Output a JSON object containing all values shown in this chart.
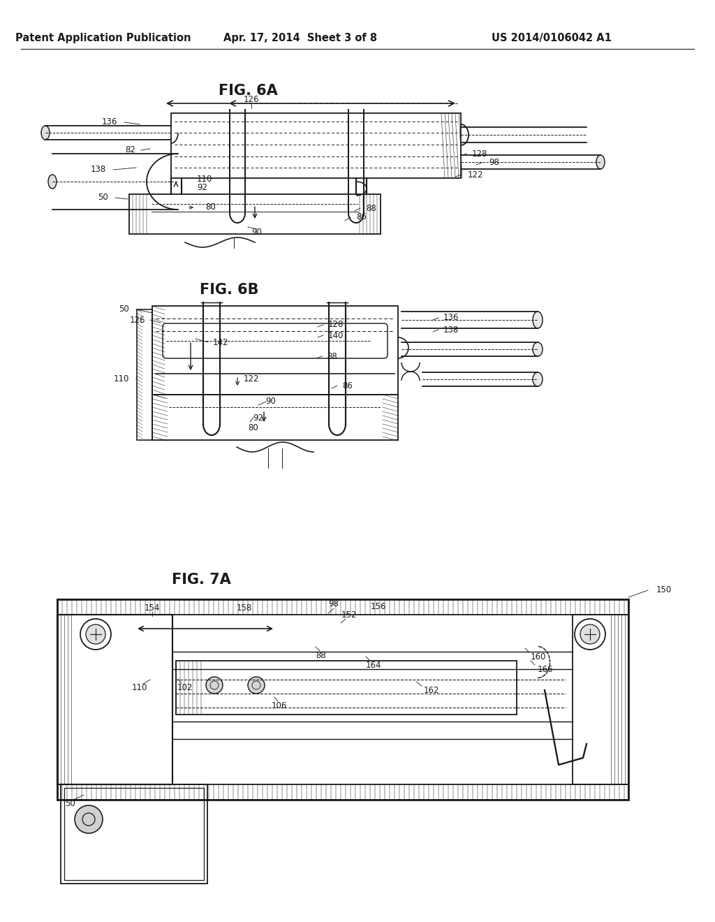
{
  "header_left": "Patent Application Publication",
  "header_mid": "Apr. 17, 2014  Sheet 3 of 8",
  "header_right": "US 2014/0106042 A1",
  "fig6a_title": "FIG. 6A",
  "fig6b_title": "FIG. 6B",
  "fig7a_title": "FIG. 7A",
  "bg_color": "#ffffff",
  "line_color": "#1a1a1a",
  "fig_title_fontsize": 15,
  "header_fontsize": 10.5,
  "label_fontsize": 8.5,
  "lw_main": 1.3,
  "lw_thin": 0.7,
  "lw_thick": 2.0
}
